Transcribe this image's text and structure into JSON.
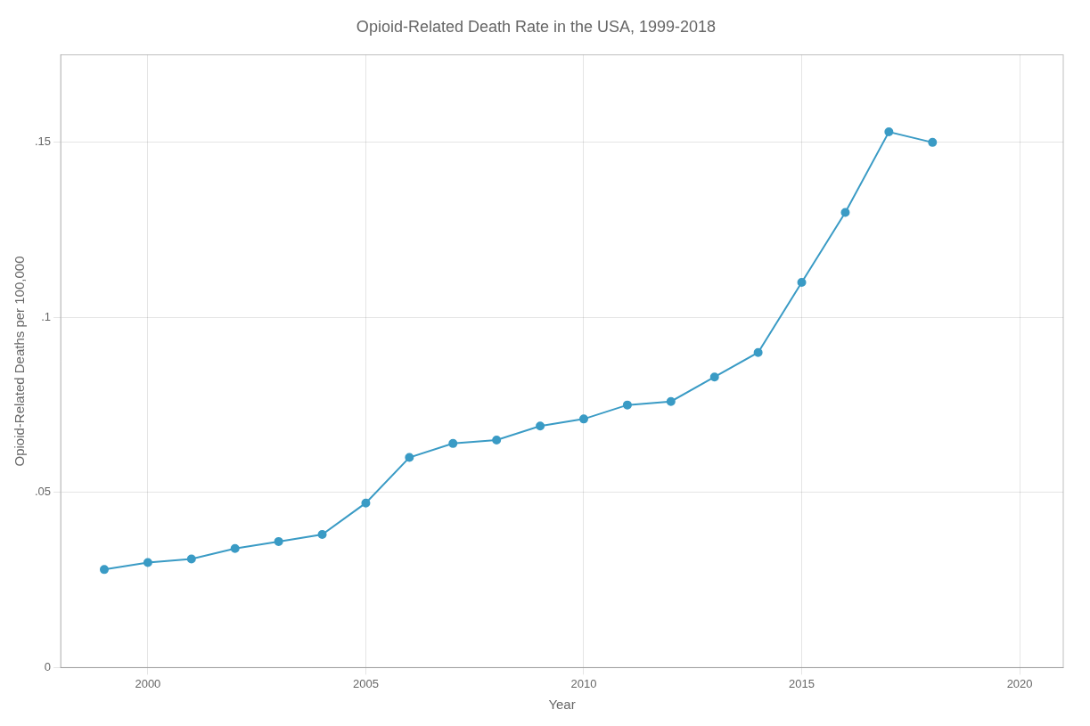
{
  "chart_data": {
    "type": "line",
    "title": "Opioid-Related Death Rate in the USA, 1999-2018",
    "xlabel": "Year",
    "ylabel": "Opioid-Related Deaths per 100,000",
    "x": [
      1999,
      2000,
      2001,
      2002,
      2003,
      2004,
      2005,
      2006,
      2007,
      2008,
      2009,
      2010,
      2011,
      2012,
      2013,
      2014,
      2015,
      2016,
      2017,
      2018
    ],
    "values": [
      0.028,
      0.03,
      0.031,
      0.034,
      0.036,
      0.038,
      0.047,
      0.06,
      0.064,
      0.065,
      0.069,
      0.071,
      0.075,
      0.076,
      0.083,
      0.09,
      0.11,
      0.13,
      0.153,
      0.15
    ],
    "color": "#3a9bc5",
    "marker": "circle",
    "xlim": [
      1998,
      2021
    ],
    "xticks": [
      2000,
      2005,
      2010,
      2015,
      2020
    ],
    "ylim": [
      0,
      0.175
    ],
    "yticks": [
      0,
      {
        "value": 0.05,
        "label": ".05"
      },
      {
        "value": 0.1,
        "label": ".1"
      },
      {
        "value": 0.15,
        "label": ".15"
      }
    ],
    "grid": true
  }
}
